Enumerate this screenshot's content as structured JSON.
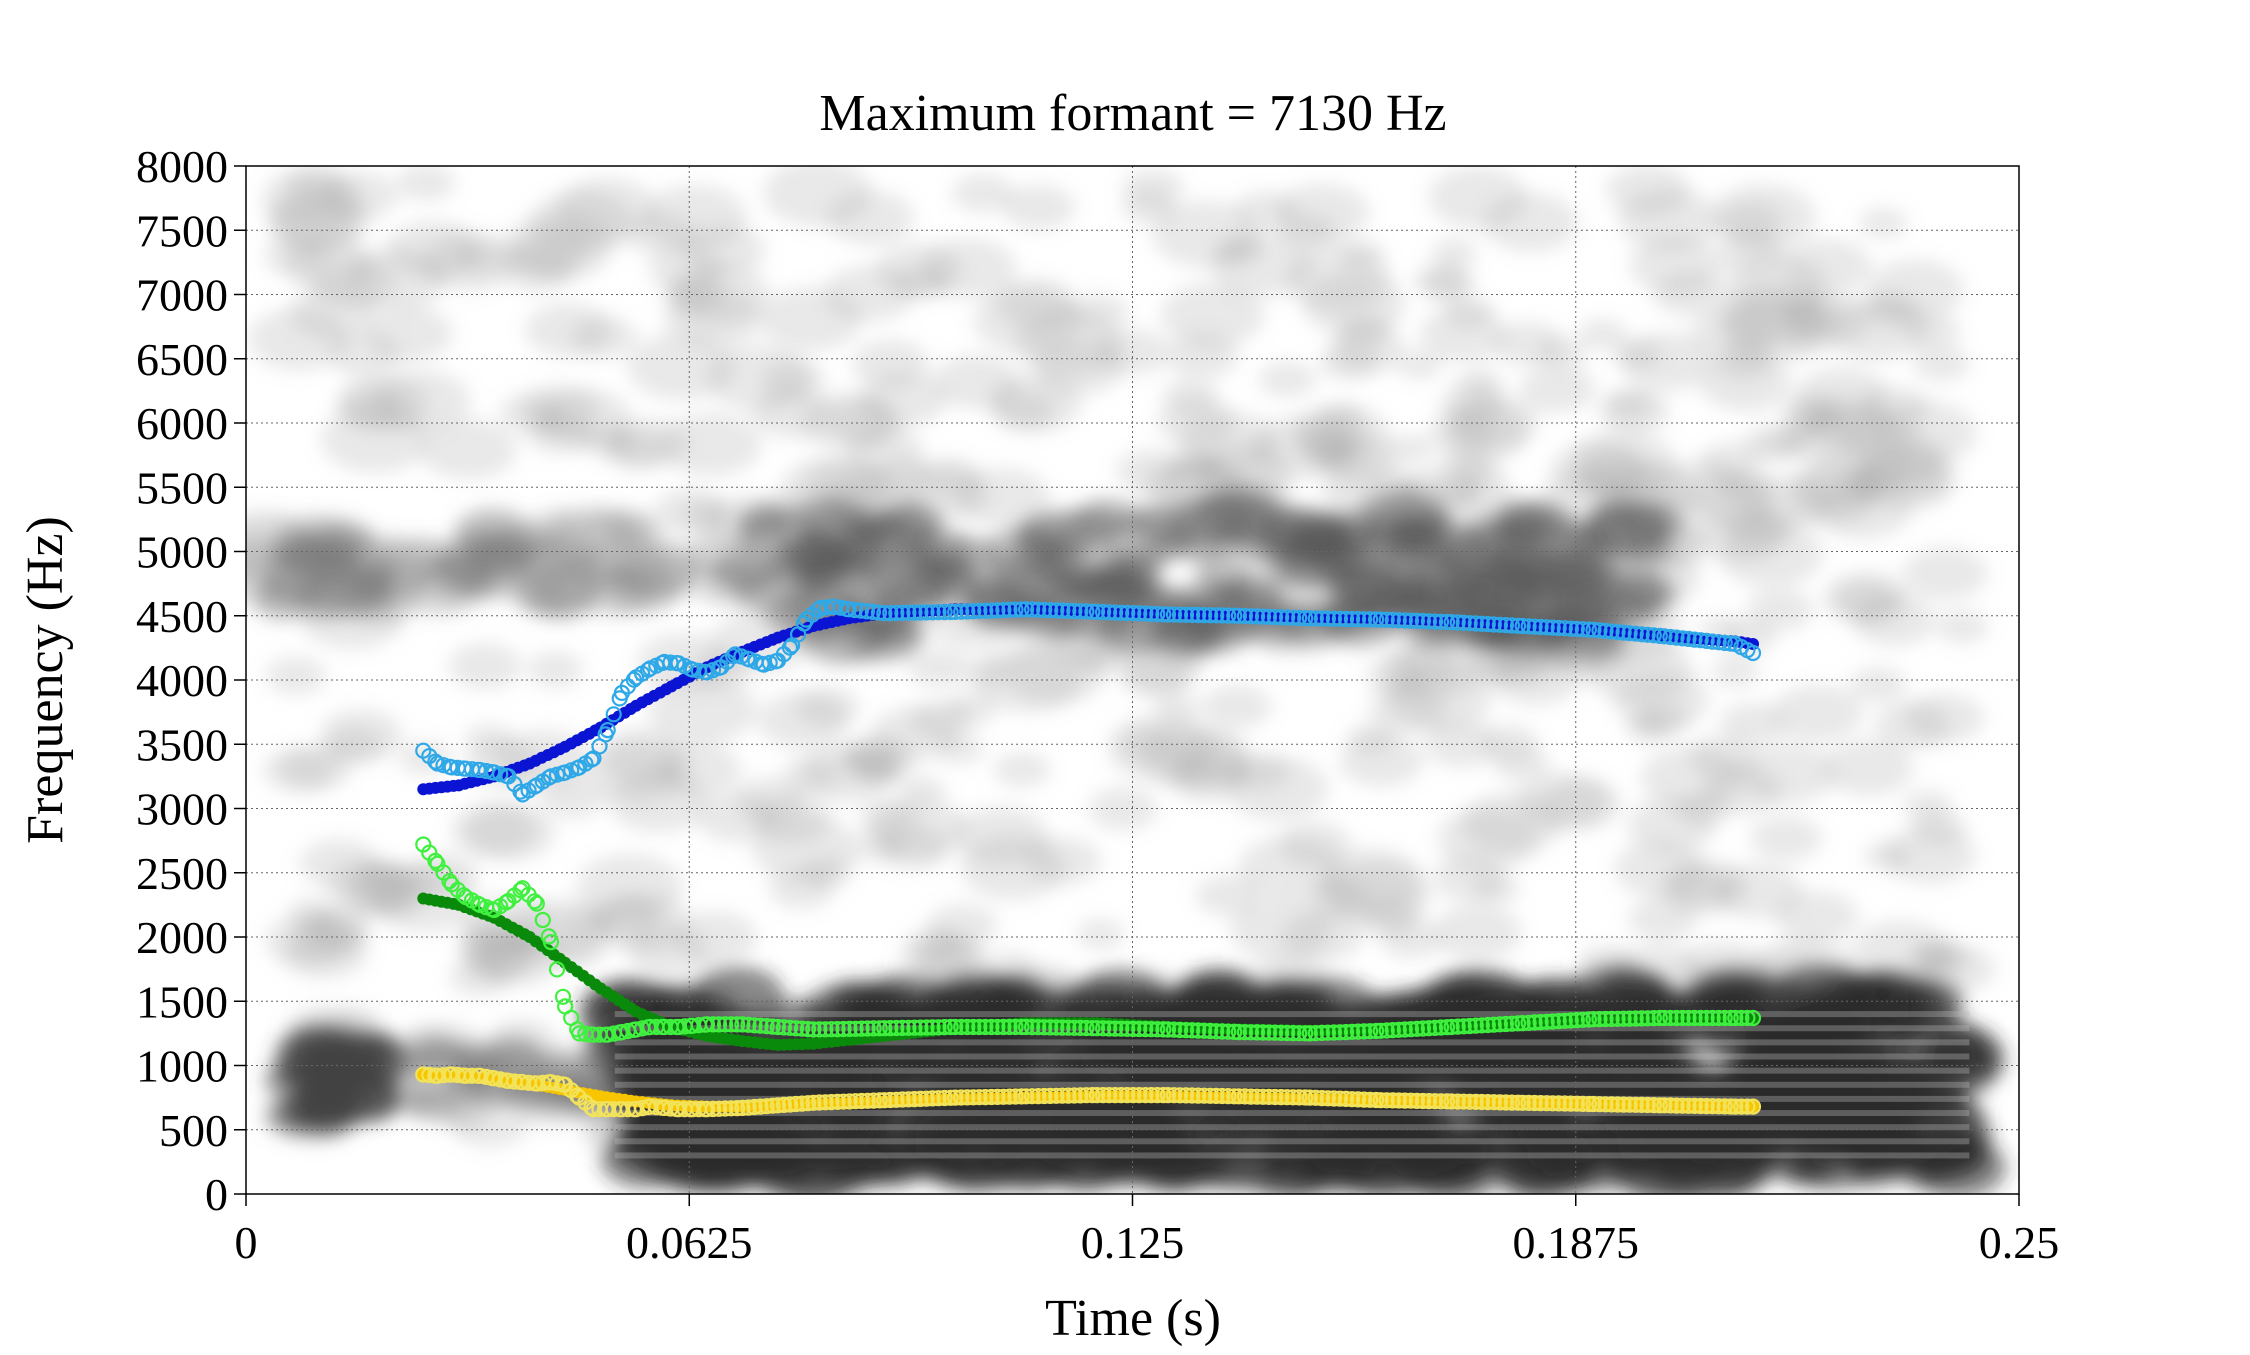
{
  "chart_data": {
    "type": "scatter",
    "title": "Maximum formant = 7130 Hz",
    "xlabel": "Time (s)",
    "ylabel": "Frequency (Hz)",
    "xlim": [
      0,
      0.25
    ],
    "ylim": [
      0,
      8000
    ],
    "x_ticks": [
      "0",
      "0.0625",
      "0.125",
      "0.1875",
      "0.25"
    ],
    "x_tick_values": [
      0,
      0.0625,
      0.125,
      0.1875,
      0.25
    ],
    "y_ticks": [
      "0",
      "500",
      "1000",
      "1500",
      "2000",
      "2500",
      "3000",
      "3500",
      "4000",
      "4500",
      "5000",
      "5500",
      "6000",
      "6500",
      "7000",
      "7500",
      "8000"
    ],
    "y_tick_values": [
      0,
      500,
      1000,
      1500,
      2000,
      2500,
      3000,
      3500,
      4000,
      4500,
      5000,
      5500,
      6000,
      6500,
      7000,
      7500,
      8000
    ],
    "grid": true,
    "background": "spectrogram",
    "series": [
      {
        "formant": "F1",
        "kind": "measured",
        "color": "#f2e35a",
        "x": [
          0.025,
          0.027,
          0.029,
          0.031,
          0.033,
          0.035,
          0.037,
          0.039,
          0.041,
          0.043,
          0.045,
          0.047,
          0.049,
          0.051,
          0.053,
          0.055,
          0.057,
          0.059,
          0.061,
          0.063,
          0.065,
          0.07,
          0.075,
          0.08,
          0.09,
          0.1,
          0.11,
          0.12,
          0.13,
          0.14,
          0.15,
          0.16,
          0.17,
          0.18,
          0.19,
          0.2,
          0.21,
          0.2125
        ],
        "y": [
          930,
          920,
          930,
          920,
          920,
          900,
          880,
          870,
          860,
          870,
          850,
          750,
          660,
          660,
          660,
          660,
          680,
          670,
          660,
          660,
          660,
          670,
          690,
          710,
          730,
          750,
          760,
          770,
          770,
          760,
          750,
          730,
          720,
          710,
          700,
          690,
          680,
          680
        ]
      },
      {
        "formant": "F1",
        "kind": "smoothed",
        "color": "#f7c600",
        "x": [
          0.025,
          0.03,
          0.035,
          0.04,
          0.045,
          0.05,
          0.055,
          0.06,
          0.065,
          0.07,
          0.08,
          0.09,
          0.1,
          0.11,
          0.12,
          0.13,
          0.14,
          0.15,
          0.16,
          0.17,
          0.18,
          0.19,
          0.2,
          0.21,
          0.2125
        ],
        "y": [
          930,
          920,
          900,
          860,
          810,
          760,
          720,
          690,
          680,
          680,
          700,
          720,
          740,
          750,
          760,
          760,
          750,
          740,
          730,
          720,
          710,
          700,
          690,
          680,
          680
        ]
      },
      {
        "formant": "F2",
        "kind": "measured",
        "color": "#3ff03f",
        "x": [
          0.025,
          0.027,
          0.029,
          0.031,
          0.033,
          0.035,
          0.037,
          0.039,
          0.041,
          0.043,
          0.045,
          0.047,
          0.049,
          0.051,
          0.053,
          0.055,
          0.057,
          0.059,
          0.061,
          0.063,
          0.065,
          0.07,
          0.075,
          0.08,
          0.09,
          0.1,
          0.11,
          0.12,
          0.13,
          0.14,
          0.15,
          0.16,
          0.17,
          0.18,
          0.19,
          0.2,
          0.21,
          0.2125
        ],
        "y": [
          2720,
          2570,
          2410,
          2310,
          2250,
          2210,
          2280,
          2380,
          2260,
          1960,
          1460,
          1250,
          1240,
          1240,
          1260,
          1280,
          1300,
          1300,
          1300,
          1310,
          1320,
          1320,
          1300,
          1280,
          1290,
          1300,
          1300,
          1290,
          1280,
          1260,
          1250,
          1270,
          1300,
          1330,
          1360,
          1370,
          1370,
          1370
        ]
      },
      {
        "formant": "F2",
        "kind": "smoothed",
        "color": "#0a8a0a",
        "x": [
          0.025,
          0.03,
          0.035,
          0.04,
          0.045,
          0.05,
          0.055,
          0.06,
          0.065,
          0.07,
          0.075,
          0.08,
          0.09,
          0.1,
          0.11,
          0.12,
          0.13,
          0.14,
          0.15,
          0.16,
          0.17,
          0.18,
          0.19,
          0.2,
          0.21,
          0.2125
        ],
        "y": [
          2300,
          2250,
          2150,
          2000,
          1800,
          1600,
          1420,
          1300,
          1230,
          1190,
          1160,
          1170,
          1230,
          1290,
          1330,
          1330,
          1300,
          1280,
          1270,
          1280,
          1300,
          1330,
          1350,
          1360,
          1360,
          1360
        ]
      },
      {
        "formant": "F3",
        "kind": "measured",
        "color": "#2fa8e8",
        "x": [
          0.025,
          0.027,
          0.029,
          0.031,
          0.033,
          0.035,
          0.037,
          0.039,
          0.041,
          0.043,
          0.045,
          0.047,
          0.049,
          0.051,
          0.053,
          0.055,
          0.057,
          0.059,
          0.061,
          0.063,
          0.065,
          0.067,
          0.069,
          0.071,
          0.073,
          0.075,
          0.077,
          0.079,
          0.081,
          0.083,
          0.085,
          0.09,
          0.1,
          0.11,
          0.12,
          0.13,
          0.14,
          0.15,
          0.16,
          0.17,
          0.18,
          0.19,
          0.2,
          0.21,
          0.2125
        ],
        "y": [
          3450,
          3350,
          3320,
          3310,
          3300,
          3280,
          3250,
          3110,
          3180,
          3250,
          3280,
          3320,
          3390,
          3610,
          3900,
          4020,
          4090,
          4140,
          4130,
          4080,
          4060,
          4100,
          4200,
          4160,
          4120,
          4150,
          4270,
          4470,
          4560,
          4570,
          4550,
          4520,
          4530,
          4550,
          4530,
          4510,
          4500,
          4480,
          4470,
          4450,
          4420,
          4390,
          4340,
          4280,
          4210
        ]
      },
      {
        "formant": "F3",
        "kind": "smoothed",
        "color": "#0a14d2",
        "x": [
          0.025,
          0.03,
          0.035,
          0.04,
          0.045,
          0.05,
          0.055,
          0.06,
          0.065,
          0.07,
          0.075,
          0.08,
          0.085,
          0.09,
          0.1,
          0.11,
          0.12,
          0.13,
          0.14,
          0.15,
          0.16,
          0.17,
          0.18,
          0.19,
          0.2,
          0.21,
          0.2125
        ],
        "y": [
          3150,
          3180,
          3250,
          3350,
          3480,
          3630,
          3800,
          3950,
          4100,
          4220,
          4330,
          4420,
          4480,
          4520,
          4550,
          4550,
          4530,
          4520,
          4500,
          4490,
          4480,
          4460,
          4430,
          4390,
          4340,
          4300,
          4280
        ]
      }
    ]
  }
}
